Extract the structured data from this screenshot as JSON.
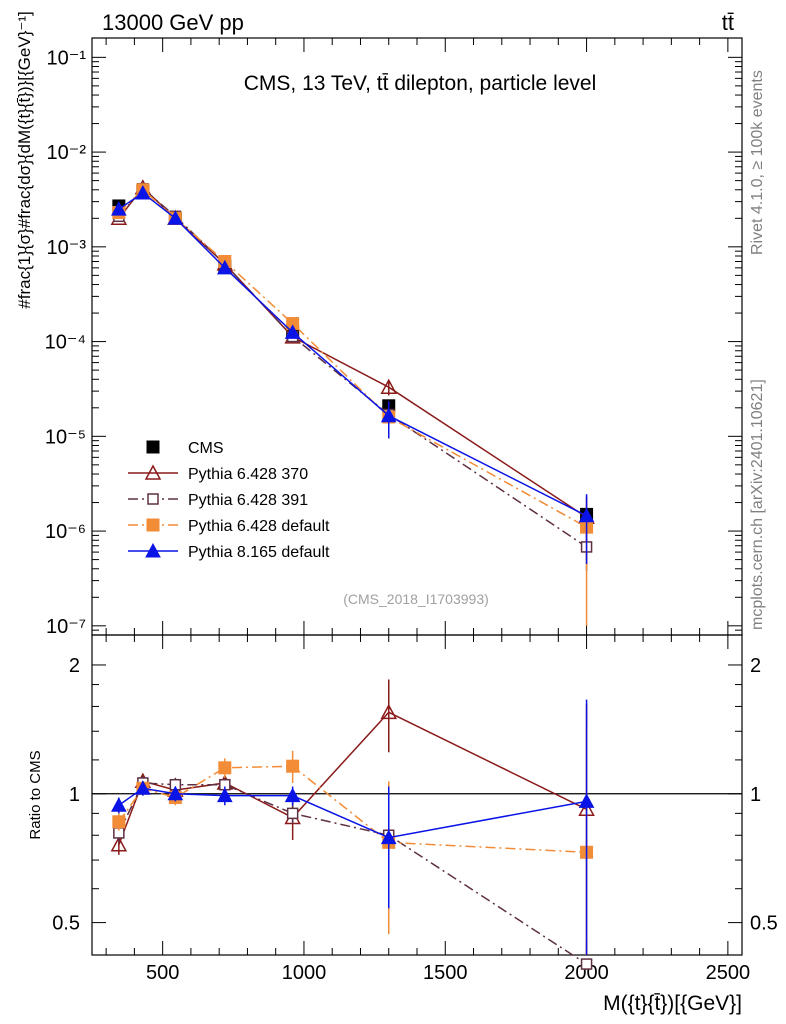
{
  "header": {
    "left": "13000 GeV pp",
    "right": "tt̄"
  },
  "side_text": {
    "rivet": "Rivet 4.1.0, ≥ 100k events",
    "mcplots": "mcplots.cern.ch [arXiv:2401.10621]"
  },
  "chart_data": [
    {
      "type": "line",
      "panel": "main",
      "title": "CMS, 13 TeV, tt̄ dilepton, particle level",
      "watermark": "(CMS_2018_I1703993)",
      "yscale": "log",
      "ylabel": "#frac{1}{σ}#frac{dσ}{dM({t}{t̄})}[{GeV}⁻¹]",
      "ylim": [
        8e-08,
        0.16
      ],
      "y_tick_labels": [
        "10⁻⁷",
        "10⁻⁶",
        "10⁻⁵",
        "10⁻⁴",
        "10⁻³",
        "10⁻²",
        "10⁻¹"
      ],
      "xlim": [
        250,
        2550
      ],
      "x": [
        345,
        430,
        545,
        720,
        960,
        1300,
        2000
      ],
      "legend_position": "lower-left",
      "series": [
        {
          "name": "CMS",
          "marker": "square-filled",
          "color": "#000000",
          "line": "none",
          "values": [
            0.0027,
            0.0039,
            0.002,
            0.00062,
            0.000125,
            2.1e-05,
            1.5e-06
          ],
          "errors": [
            0.0002,
            0.0002,
            0.0001,
            3e-05,
            1e-05,
            3e-06,
            2e-07
          ]
        },
        {
          "name": "Pythia 6.428 370",
          "marker": "triangle-open",
          "color": "#8b1a1a",
          "line": "solid",
          "values": [
            0.002,
            0.0042,
            0.002,
            0.00066,
            0.000112,
            3.3e-05,
            1.4e-06
          ],
          "errors": [
            0.0001,
            0.0002,
            0.0001,
            3e-05,
            1e-05,
            6e-06,
            9e-07
          ]
        },
        {
          "name": "Pythia 6.428 391",
          "marker": "square-open",
          "color": "#5e3043",
          "line": "dashdot",
          "values": [
            0.0021,
            0.0041,
            0.0021,
            0.00066,
            0.000113,
            1.7e-05,
            6.8e-07
          ],
          "errors": [
            0.0001,
            0.0002,
            0.0001,
            3e-05,
            1e-05,
            4e-06,
            3e-07
          ]
        },
        {
          "name": "Pythia 6.428 default",
          "marker": "square-filled",
          "color": "#f28c36",
          "line": "dashdot",
          "values": [
            0.0023,
            0.004,
            0.002,
            0.0007,
            0.000155,
            1.6e-05,
            1.1e-06
          ],
          "errors": [
            0.0001,
            0.0002,
            0.0001,
            3e-05,
            1e-05,
            4e-06,
            1e-06
          ]
        },
        {
          "name": "Pythia 8.165 default",
          "marker": "triangle-filled",
          "color": "#0a14e6",
          "line": "solid",
          "values": [
            0.0025,
            0.0037,
            0.002,
            0.0006,
            0.000125,
            1.65e-05,
            1.45e-06
          ],
          "errors": [
            0.0001,
            0.0002,
            0.0001,
            3e-05,
            1e-05,
            7e-06,
            1e-06
          ]
        }
      ]
    },
    {
      "type": "line",
      "panel": "ratio",
      "ylabel": "Ratio to CMS",
      "xlabel": "M({t}{t̄})[{GeV}]",
      "yscale": "log",
      "ylim": [
        0.42,
        2.35
      ],
      "y_tick_labels": [
        "0.5",
        "1",
        "2"
      ],
      "xlim": [
        250,
        2550
      ],
      "x_tick_labels": [
        "500",
        "1000",
        "1500",
        "2000",
        "2500"
      ],
      "reference_line": 1,
      "x": [
        345,
        430,
        545,
        720,
        960,
        1300,
        2000
      ],
      "series": [
        {
          "name": "Pythia 6.428 370",
          "values": [
            0.76,
            1.07,
            1.02,
            1.06,
            0.88,
            1.55,
            0.92
          ],
          "errors": [
            0.04,
            0.04,
            0.04,
            0.04,
            0.1,
            0.3,
            0.7
          ]
        },
        {
          "name": "Pythia 6.428 391",
          "values": [
            0.81,
            1.06,
            1.05,
            1.05,
            0.9,
            0.8,
            0.4
          ],
          "errors": [
            0.04,
            0.04,
            0.04,
            0.04,
            0.05,
            0.2,
            0.05
          ]
        },
        {
          "name": "Pythia 6.428 default",
          "values": [
            0.86,
            1.03,
            0.98,
            1.15,
            1.16,
            0.77,
            0.73
          ],
          "errors": [
            0.04,
            0.04,
            0.04,
            0.06,
            0.1,
            0.3,
            0.7
          ]
        },
        {
          "name": "Pythia 8.165 default",
          "values": [
            0.94,
            1.03,
            1.0,
            0.99,
            0.99,
            0.79,
            0.96
          ],
          "errors": [
            0.04,
            0.04,
            0.04,
            0.05,
            0.05,
            0.25,
            0.7
          ]
        }
      ]
    }
  ]
}
